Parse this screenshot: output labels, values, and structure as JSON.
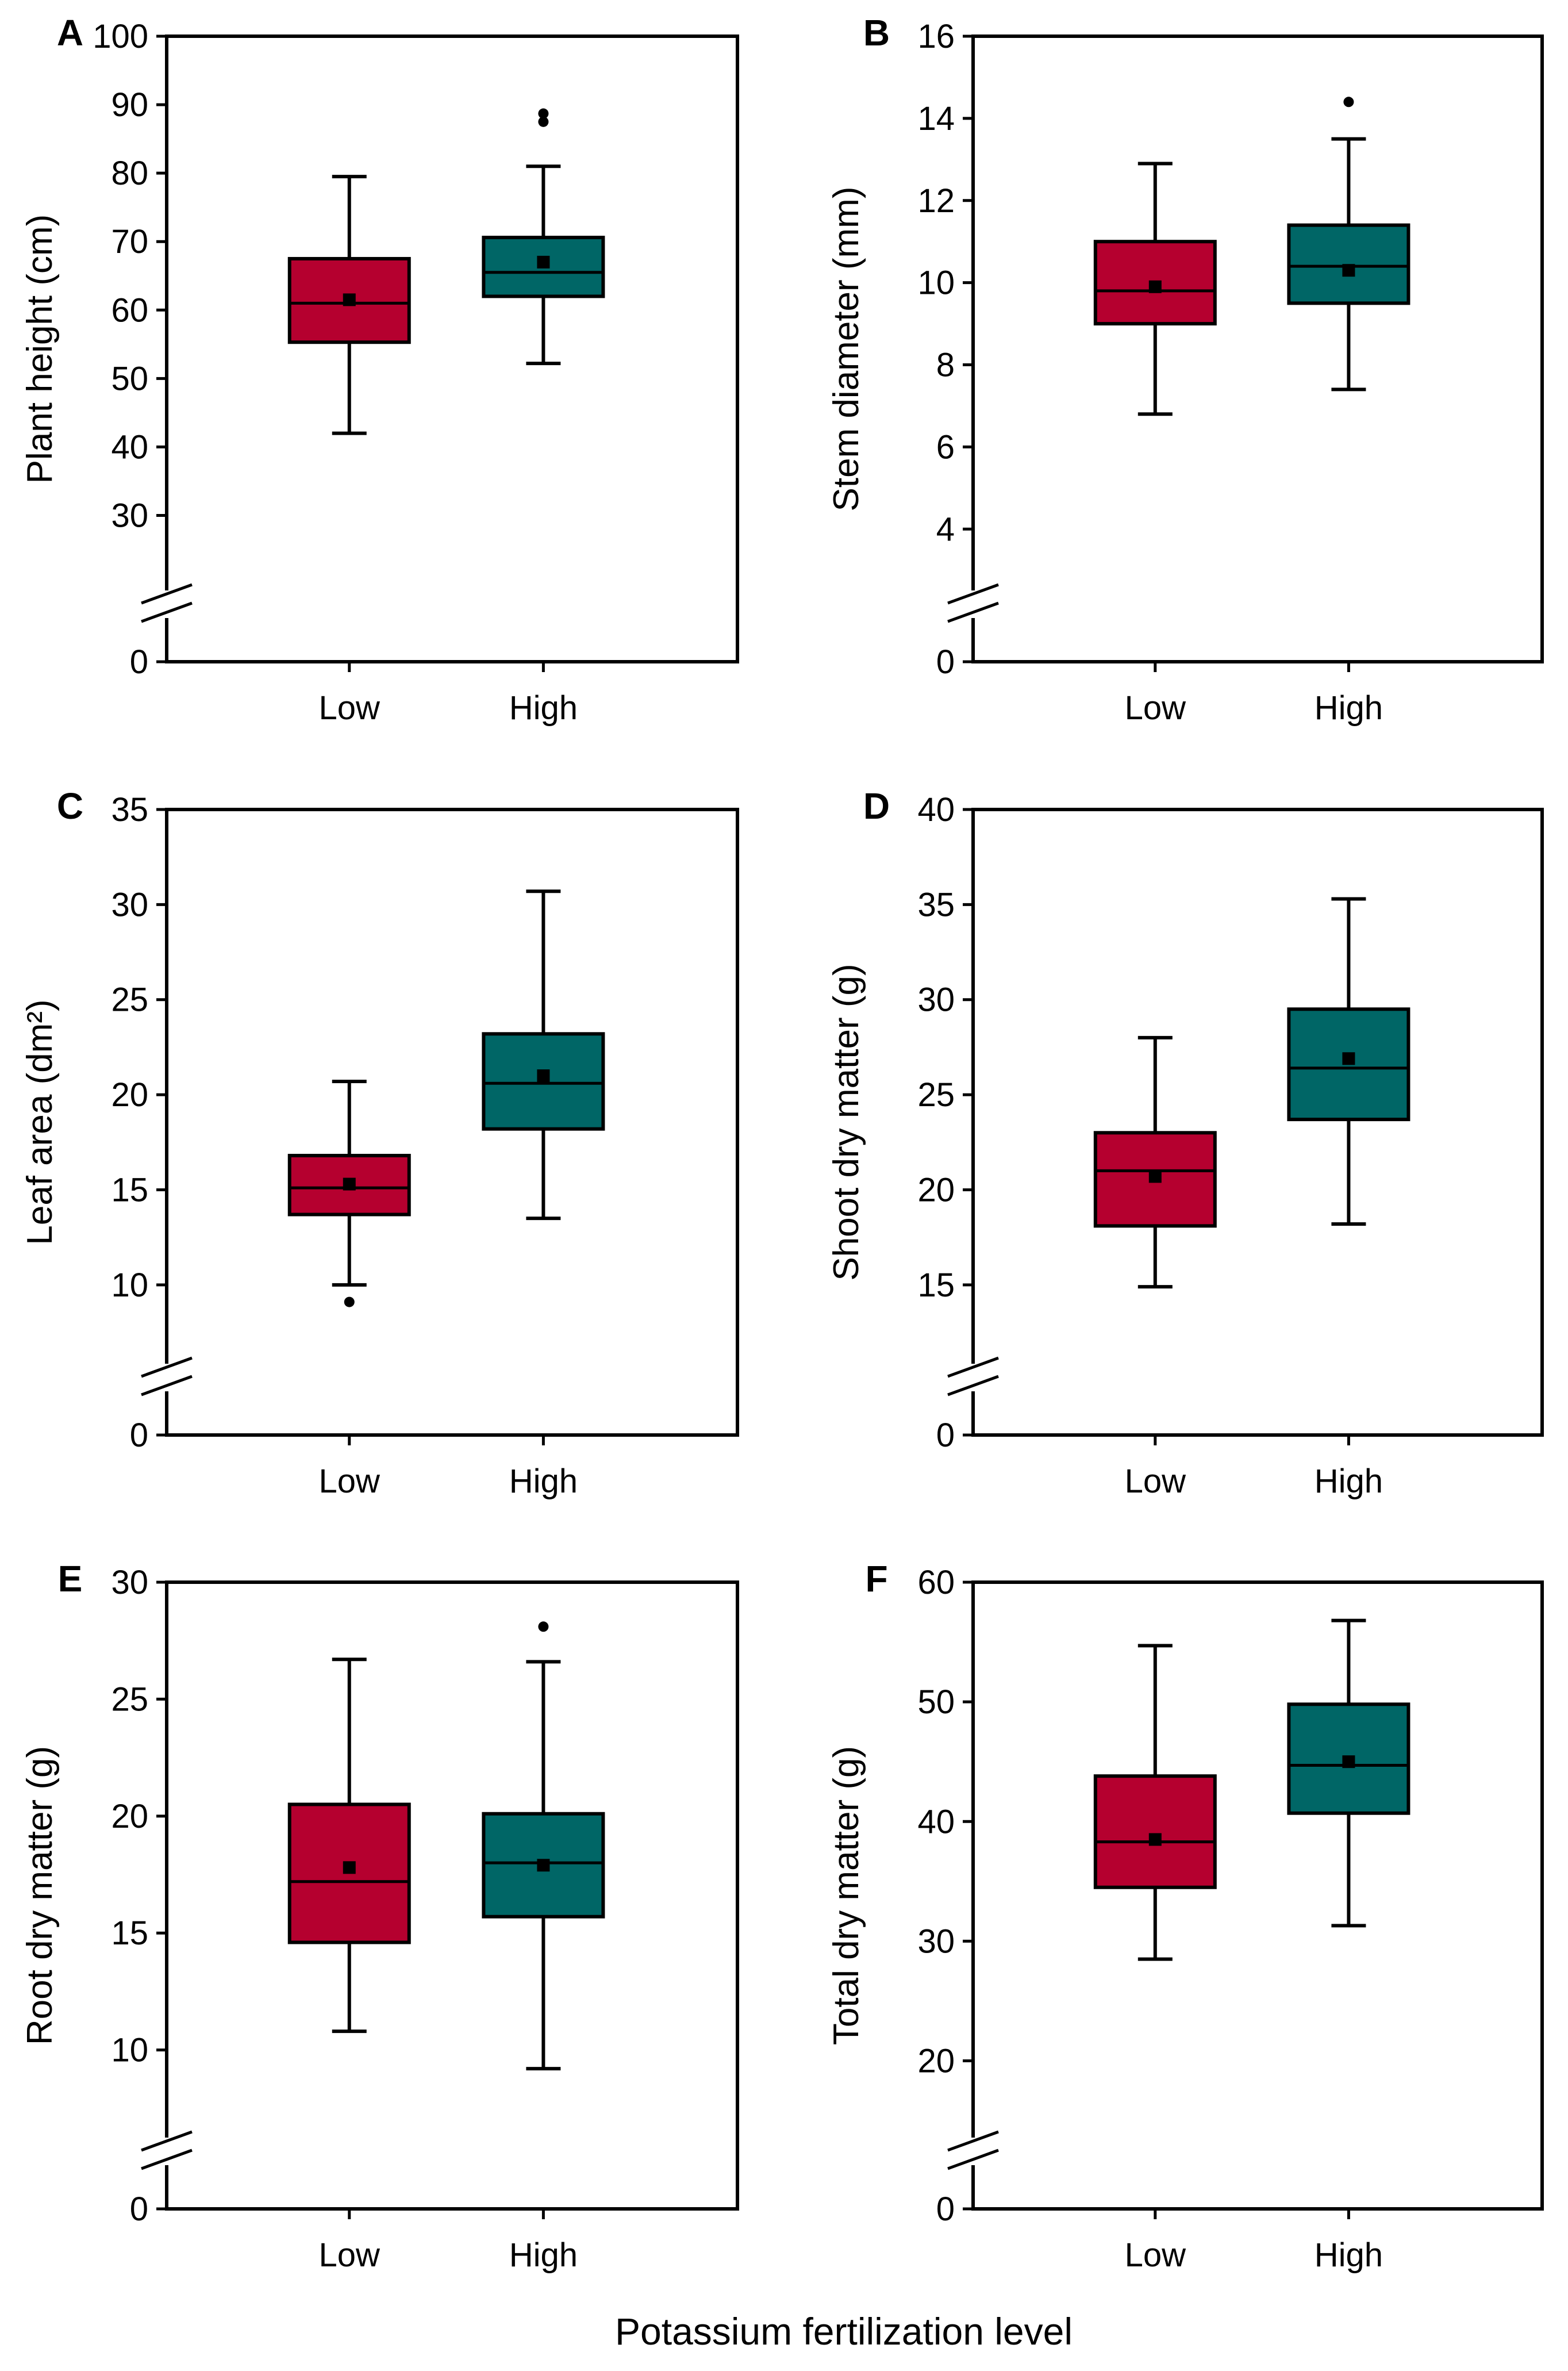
{
  "figure": {
    "global_xlabel": "Potassium fertilization level",
    "colors": {
      "Low": "#B5002F",
      "High": "#006666",
      "stroke": "#000000"
    }
  },
  "chart_data": [
    {
      "type": "box",
      "panel": "A",
      "ylabel": "Plant height (cm)",
      "axis_break": true,
      "ylim": [
        25,
        100
      ],
      "yticks": [
        30,
        40,
        50,
        60,
        70,
        80,
        90,
        100
      ],
      "categories": [
        "Low",
        "High"
      ],
      "boxes": [
        {
          "name": "Low",
          "whisker_low": 42,
          "q1": 55.3,
          "median": 61,
          "q3": 67.5,
          "whisker_high": 79.5,
          "mean": 61.5,
          "outliers": []
        },
        {
          "name": "High",
          "whisker_low": 52.2,
          "q1": 62,
          "median": 65.5,
          "q3": 70.6,
          "whisker_high": 81,
          "mean": 67,
          "outliers": [
            87.5,
            88.7
          ]
        }
      ]
    },
    {
      "type": "box",
      "panel": "B",
      "ylabel": "Stem diameter (mm)",
      "axis_break": true,
      "ylim": [
        3.5,
        16
      ],
      "yticks": [
        4,
        6,
        8,
        10,
        12,
        14,
        16
      ],
      "categories": [
        "Low",
        "High"
      ],
      "boxes": [
        {
          "name": "Low",
          "whisker_low": 6.8,
          "q1": 9.0,
          "median": 9.8,
          "q3": 11.0,
          "whisker_high": 12.9,
          "mean": 9.9,
          "outliers": []
        },
        {
          "name": "High",
          "whisker_low": 7.4,
          "q1": 9.5,
          "median": 10.4,
          "q3": 11.4,
          "whisker_high": 13.5,
          "mean": 10.3,
          "outliers": [
            14.4
          ]
        }
      ]
    },
    {
      "type": "box",
      "panel": "C",
      "ylabel": "Leaf area (dm²)",
      "axis_break": true,
      "ylim": [
        8,
        35
      ],
      "yticks": [
        10,
        15,
        20,
        25,
        30,
        35
      ],
      "categories": [
        "Low",
        "High"
      ],
      "boxes": [
        {
          "name": "Low",
          "whisker_low": 10,
          "q1": 13.7,
          "median": 15.1,
          "q3": 16.8,
          "whisker_high": 20.7,
          "mean": 15.3,
          "outliers": [
            9.1
          ]
        },
        {
          "name": "High",
          "whisker_low": 13.5,
          "q1": 18.2,
          "median": 20.6,
          "q3": 23.2,
          "whisker_high": 30.7,
          "mean": 21.0,
          "outliers": []
        }
      ]
    },
    {
      "type": "box",
      "panel": "D",
      "ylabel": "Shoot dry matter (g)",
      "axis_break": true,
      "ylim": [
        13,
        40
      ],
      "yticks": [
        15,
        20,
        25,
        30,
        35,
        40
      ],
      "categories": [
        "Low",
        "High"
      ],
      "boxes": [
        {
          "name": "Low",
          "whisker_low": 14.9,
          "q1": 18.1,
          "median": 21.0,
          "q3": 23.0,
          "whisker_high": 28.0,
          "mean": 20.7,
          "outliers": []
        },
        {
          "name": "High",
          "whisker_low": 18.2,
          "q1": 23.7,
          "median": 26.4,
          "q3": 29.5,
          "whisker_high": 35.3,
          "mean": 26.9,
          "outliers": []
        }
      ]
    },
    {
      "type": "box",
      "panel": "E",
      "ylabel": "Root dry matter (g)",
      "axis_break": true,
      "ylim": [
        8,
        30
      ],
      "yticks": [
        10,
        15,
        20,
        25,
        30
      ],
      "categories": [
        "Low",
        "High"
      ],
      "boxes": [
        {
          "name": "Low",
          "whisker_low": 10.8,
          "q1": 14.6,
          "median": 17.2,
          "q3": 20.5,
          "whisker_high": 26.7,
          "mean": 17.8,
          "outliers": []
        },
        {
          "name": "High",
          "whisker_low": 9.2,
          "q1": 15.7,
          "median": 18.0,
          "q3": 20.1,
          "whisker_high": 26.6,
          "mean": 17.9,
          "outliers": [
            28.1
          ]
        }
      ]
    },
    {
      "type": "box",
      "panel": "F",
      "ylabel": "Total dry matter (g)",
      "axis_break": true,
      "ylim": [
        17,
        60
      ],
      "yticks": [
        20,
        30,
        40,
        50,
        60
      ],
      "categories": [
        "Low",
        "High"
      ],
      "boxes": [
        {
          "name": "Low",
          "whisker_low": 28.5,
          "q1": 34.5,
          "median": 38.3,
          "q3": 43.8,
          "whisker_high": 54.7,
          "mean": 38.5,
          "outliers": []
        },
        {
          "name": "High",
          "whisker_low": 31.3,
          "q1": 40.7,
          "median": 44.7,
          "q3": 49.8,
          "whisker_high": 56.8,
          "mean": 45.0,
          "outliers": []
        }
      ]
    }
  ]
}
